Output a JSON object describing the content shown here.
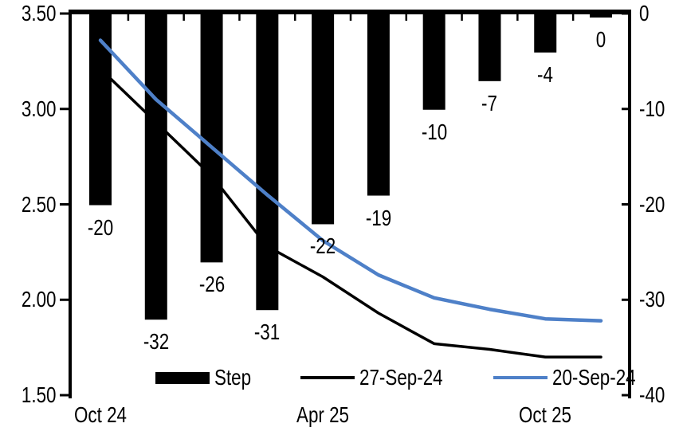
{
  "chart_data": {
    "type": "combo_bar_line",
    "title": "",
    "n_categories": 10,
    "x_axis": {
      "tick_labels": [
        {
          "category_index": 0,
          "label": "Oct 24"
        },
        {
          "category_index": 4,
          "label": "Apr 25"
        },
        {
          "category_index": 8,
          "label": "Oct 25"
        }
      ]
    },
    "left_axis": {
      "min": 1.5,
      "max": 3.5,
      "step": 0.5,
      "tick_labels": [
        "3.50",
        "3.00",
        "2.50",
        "2.00",
        "1.50"
      ]
    },
    "right_axis": {
      "min": -40,
      "max": 0,
      "step": 10,
      "tick_labels": [
        "0",
        "-10",
        "-20",
        "-30",
        "-40"
      ]
    },
    "grid": false,
    "legend_position": "bottom-inside",
    "series": [
      {
        "name": "Step",
        "type": "bar",
        "axis": "right",
        "color": "#000000",
        "values": [
          -20,
          -32,
          -26,
          -31,
          -22,
          -19,
          -10,
          -7,
          -4,
          0
        ],
        "data_labels": [
          "-20",
          "-32",
          "-26",
          "-31",
          "-22",
          "-19",
          "-10",
          "-7",
          "-4",
          "0"
        ]
      },
      {
        "name": "27-Sep-24",
        "type": "line",
        "axis": "left",
        "color": "#000000",
        "values": [
          3.21,
          2.93,
          2.65,
          2.28,
          2.12,
          1.93,
          1.77,
          1.74,
          1.7,
          1.7
        ]
      },
      {
        "name": "20-Sep-24",
        "type": "line",
        "axis": "left",
        "color": "#4E80C8",
        "values": [
          3.36,
          3.05,
          2.8,
          2.55,
          2.31,
          2.13,
          2.01,
          1.95,
          1.9,
          1.89
        ]
      }
    ]
  }
}
